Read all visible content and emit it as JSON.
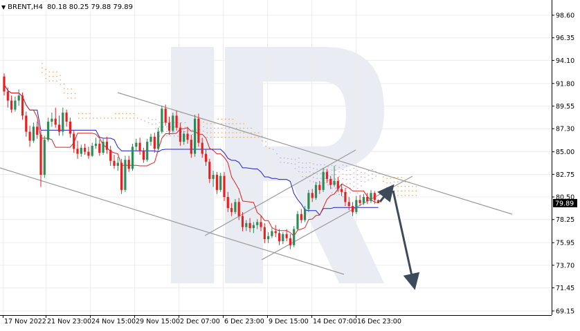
{
  "chart_data": {
    "type": "candlestick",
    "symbol": "BRENT,H4",
    "ohlc_readout": "80.18 80.25 79.88 79.89",
    "last_price": "79.89",
    "ylim": [
      69.15,
      98.6
    ],
    "y_ticks": [
      "98.60",
      "96.35",
      "94.10",
      "91.80",
      "89.55",
      "87.30",
      "85.00",
      "82.75",
      "80.50",
      "78.25",
      "75.95",
      "73.70",
      "71.45",
      "69.15"
    ],
    "x_ticks": [
      "17 Nov 2022",
      "21 Nov 23:00",
      "24 Nov 15:00",
      "29 Nov 15:00",
      "2 Dec 07:00",
      "6 Dec 23:00",
      "9 Dec 15:00",
      "14 Dec 07:00",
      "16 Dec 23:00"
    ],
    "candles": [
      [
        92.5,
        92.8,
        90.6,
        91.0
      ],
      [
        91.0,
        91.4,
        89.4,
        90.1
      ],
      [
        90.1,
        90.6,
        88.9,
        89.2
      ],
      [
        89.2,
        90.5,
        89.0,
        90.1
      ],
      [
        90.1,
        91.2,
        89.6,
        90.6
      ],
      [
        90.6,
        90.9,
        88.2,
        88.6
      ],
      [
        88.6,
        89.0,
        86.5,
        87.0
      ],
      [
        87.0,
        87.6,
        85.5,
        86.1
      ],
      [
        86.1,
        87.9,
        85.9,
        87.5
      ],
      [
        87.5,
        88.0,
        86.3,
        86.7
      ],
      [
        86.7,
        87.2,
        81.5,
        82.7
      ],
      [
        82.7,
        86.6,
        82.4,
        86.2
      ],
      [
        86.2,
        88.4,
        86.0,
        88.0
      ],
      [
        88.0,
        88.9,
        87.5,
        88.3
      ],
      [
        88.3,
        89.4,
        87.4,
        87.7
      ],
      [
        87.7,
        88.6,
        86.6,
        87.0
      ],
      [
        87.0,
        89.4,
        86.6,
        88.9
      ],
      [
        88.9,
        89.2,
        87.5,
        88.0
      ],
      [
        88.0,
        88.4,
        86.4,
        86.8
      ],
      [
        86.8,
        87.1,
        84.9,
        85.3
      ],
      [
        85.3,
        86.1,
        84.3,
        84.8
      ],
      [
        84.8,
        85.7,
        84.5,
        85.4
      ],
      [
        85.4,
        85.8,
        84.7,
        85.0
      ],
      [
        85.0,
        85.5,
        84.3,
        84.6
      ],
      [
        84.6,
        85.9,
        84.5,
        85.6
      ],
      [
        85.6,
        86.4,
        85.3,
        85.8
      ],
      [
        85.8,
        86.2,
        84.6,
        84.9
      ],
      [
        84.9,
        86.3,
        84.7,
        86.0
      ],
      [
        86.0,
        86.5,
        84.8,
        85.2
      ],
      [
        85.2,
        85.6,
        83.6,
        84.1
      ],
      [
        84.1,
        84.7,
        83.3,
        83.6
      ],
      [
        83.6,
        84.5,
        83.1,
        83.9
      ],
      [
        83.9,
        84.3,
        80.8,
        81.2
      ],
      [
        81.2,
        84.6,
        81.0,
        84.2
      ],
      [
        84.2,
        84.6,
        83.0,
        83.3
      ],
      [
        83.3,
        85.8,
        83.1,
        85.5
      ],
      [
        85.5,
        86.3,
        85.1,
        85.9
      ],
      [
        85.9,
        86.4,
        84.7,
        85.1
      ],
      [
        85.1,
        85.4,
        83.9,
        84.2
      ],
      [
        84.2,
        86.3,
        84.0,
        86.0
      ],
      [
        86.0,
        86.8,
        85.6,
        86.5
      ],
      [
        86.5,
        86.9,
        84.9,
        85.3
      ],
      [
        85.3,
        87.4,
        85.1,
        87.0
      ],
      [
        87.0,
        89.6,
        86.8,
        89.3
      ],
      [
        89.3,
        89.7,
        87.6,
        87.9
      ],
      [
        87.9,
        88.5,
        86.7,
        87.1
      ],
      [
        87.1,
        88.9,
        86.9,
        88.6
      ],
      [
        88.6,
        89.1,
        87.1,
        87.4
      ],
      [
        87.4,
        87.9,
        85.6,
        86.0
      ],
      [
        86.0,
        87.1,
        85.7,
        86.8
      ],
      [
        86.8,
        87.5,
        85.8,
        86.2
      ],
      [
        86.2,
        86.7,
        84.4,
        84.8
      ],
      [
        84.8,
        88.7,
        84.5,
        88.3
      ],
      [
        88.3,
        88.8,
        85.5,
        85.9
      ],
      [
        85.9,
        86.4,
        84.4,
        84.8
      ],
      [
        84.8,
        85.2,
        83.6,
        84.0
      ],
      [
        84.0,
        84.3,
        81.9,
        82.3
      ],
      [
        82.3,
        83.1,
        81.5,
        82.7
      ],
      [
        82.7,
        83.0,
        80.8,
        81.2
      ],
      [
        81.2,
        82.9,
        81.0,
        82.6
      ],
      [
        82.6,
        83.0,
        80.1,
        80.5
      ],
      [
        80.5,
        81.0,
        79.0,
        79.4
      ],
      [
        79.4,
        79.9,
        78.6,
        79.0
      ],
      [
        79.0,
        80.3,
        78.8,
        80.0
      ],
      [
        80.0,
        80.4,
        78.2,
        78.6
      ],
      [
        78.6,
        79.0,
        77.1,
        77.5
      ],
      [
        77.5,
        78.2,
        77.1,
        77.9
      ],
      [
        77.9,
        78.4,
        77.0,
        77.4
      ],
      [
        77.4,
        78.0,
        76.9,
        77.7
      ],
      [
        77.7,
        78.3,
        77.3,
        78.0
      ],
      [
        78.0,
        78.6,
        77.1,
        77.5
      ],
      [
        77.5,
        77.9,
        75.9,
        76.3
      ],
      [
        76.3,
        77.0,
        75.9,
        76.6
      ],
      [
        76.6,
        77.4,
        76.4,
        77.1
      ],
      [
        77.1,
        77.7,
        76.5,
        76.9
      ],
      [
        76.9,
        77.3,
        75.7,
        76.1
      ],
      [
        76.1,
        77.0,
        75.8,
        76.8
      ],
      [
        76.8,
        77.3,
        76.1,
        76.4
      ],
      [
        76.4,
        76.8,
        75.3,
        75.7
      ],
      [
        75.7,
        77.6,
        75.5,
        77.3
      ],
      [
        77.3,
        79.1,
        77.1,
        78.8
      ],
      [
        78.8,
        79.3,
        77.9,
        78.2
      ],
      [
        78.2,
        79.6,
        78.0,
        79.3
      ],
      [
        79.3,
        81.2,
        79.0,
        80.9
      ],
      [
        80.9,
        81.3,
        80.0,
        80.4
      ],
      [
        80.4,
        82.0,
        80.2,
        81.7
      ],
      [
        81.7,
        82.1,
        80.8,
        81.2
      ],
      [
        81.2,
        83.4,
        81.0,
        83.0
      ],
      [
        83.0,
        83.3,
        81.9,
        82.3
      ],
      [
        82.3,
        82.6,
        81.3,
        81.7
      ],
      [
        81.7,
        83.6,
        81.5,
        82.1
      ],
      [
        82.1,
        82.5,
        81.0,
        81.3
      ],
      [
        81.3,
        81.8,
        80.6,
        81.0
      ],
      [
        81.0,
        81.4,
        79.6,
        80.0
      ],
      [
        80.0,
        80.5,
        79.2,
        79.6
      ],
      [
        79.6,
        80.0,
        78.6,
        79.0
      ],
      [
        79.0,
        80.6,
        78.8,
        80.2
      ],
      [
        80.2,
        80.7,
        79.6,
        79.9
      ],
      [
        79.9,
        80.8,
        79.7,
        80.5
      ],
      [
        80.5,
        80.9,
        79.8,
        80.1
      ],
      [
        80.1,
        81.2,
        79.9,
        80.9
      ],
      [
        80.9,
        81.1,
        79.8,
        80.2
      ],
      [
        80.18,
        80.25,
        79.88,
        79.89
      ]
    ]
  },
  "colors": {
    "bull": "#2e8b57",
    "bear": "#e8201f",
    "grid": "#ececec",
    "tenkan": "#e0201c",
    "kijun": "#1d1dcc",
    "senkou_a": "#f5a055",
    "senkou_b": "#c3a2e0",
    "trendline": "#9a9a9a",
    "forecast": "#3d4a5a",
    "watermark": "#e9edf3"
  }
}
